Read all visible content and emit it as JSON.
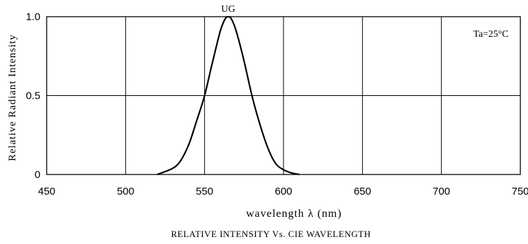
{
  "chart_data": {
    "type": "line",
    "title": "RELATIVE INTENSITY Vs. CIE WAVELENGTH",
    "xlabel": "wavelength λ (nm)",
    "ylabel": "Relative Radiant Intensity",
    "annotation": "Ta=25°C",
    "xlim": [
      450,
      750
    ],
    "ylim": [
      0,
      1.0
    ],
    "x_ticks": [
      450,
      500,
      550,
      600,
      650,
      700,
      750
    ],
    "x_tick_labels": [
      "450",
      "500",
      "550",
      "600",
      "650",
      "700",
      "750"
    ],
    "y_ticks": [
      0,
      0.5,
      1.0
    ],
    "y_tick_labels": [
      "0",
      "0.5",
      "1.0"
    ],
    "grid": true,
    "series": [
      {
        "name": "UG",
        "color": "#000000",
        "x": [
          520,
          530,
          535,
          540,
          545,
          550,
          555,
          560,
          563,
          565,
          567,
          570,
          575,
          580,
          585,
          590,
          595,
          600,
          605,
          610
        ],
        "y": [
          0.0,
          0.04,
          0.09,
          0.19,
          0.34,
          0.5,
          0.71,
          0.91,
          0.985,
          1.0,
          0.985,
          0.91,
          0.72,
          0.5,
          0.32,
          0.17,
          0.07,
          0.03,
          0.01,
          0.0
        ]
      }
    ]
  }
}
